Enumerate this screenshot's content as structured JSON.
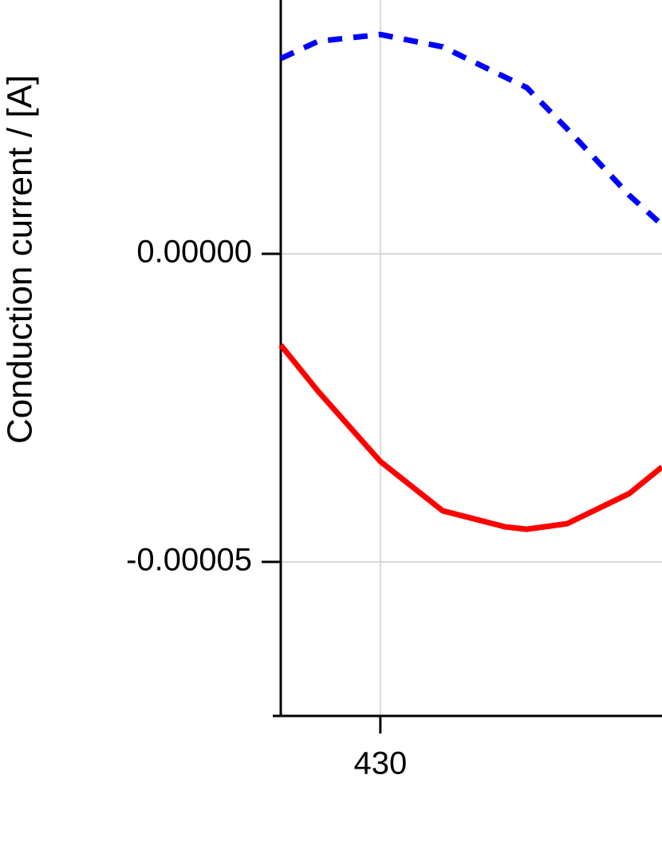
{
  "chart_data": {
    "type": "line",
    "y_label": "Conduction current / [A]",
    "xlim": [
      426.8,
      439.05
    ],
    "xticks": [
      430
    ],
    "ylim": [
      -7.5e-05,
      4.12e-05
    ],
    "yticks": [
      {
        "value": -5e-05,
        "label": "-0.00005"
      },
      {
        "value": 0,
        "label": "0.00000"
      }
    ],
    "grid": true,
    "x": [
      426.8,
      428,
      430,
      432,
      434,
      434.7,
      436,
      438,
      439.05
    ],
    "series": [
      {
        "color": "#ff0000",
        "dash": false,
        "values": [
          -1.48e-05,
          -2.23e-05,
          -3.37e-05,
          -4.17e-05,
          -4.43e-05,
          -4.47e-05,
          -4.38e-05,
          -3.89e-05,
          -3.46e-05
        ]
      },
      {
        "color": "#0000ff",
        "dash": true,
        "values": [
          3.17e-05,
          3.45e-05,
          3.56e-05,
          3.36e-05,
          2.87e-05,
          2.7e-05,
          2.03e-05,
          9.5e-06,
          4.7e-06
        ]
      }
    ]
  }
}
